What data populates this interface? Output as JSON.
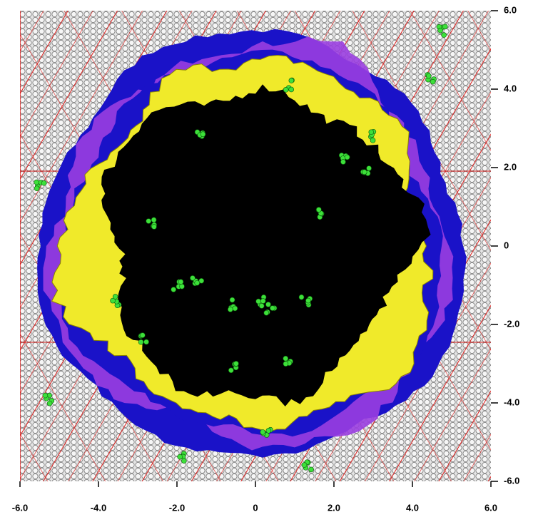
{
  "chart_data": {
    "type": "image",
    "xlim": [
      -6,
      6
    ],
    "ylim": [
      -6,
      6
    ],
    "xticks": [
      {
        "value": -6,
        "label": "-6.0"
      },
      {
        "value": -4,
        "label": "-4.0"
      },
      {
        "value": -2,
        "label": "-2.0"
      },
      0,
      {
        "value": 2,
        "label": "2.0"
      },
      {
        "value": 4,
        "label": "4.0"
      },
      {
        "value": 6,
        "label": "6.0"
      }
    ],
    "yticks": [
      {
        "value": 6,
        "label": "6.0"
      },
      {
        "value": 4,
        "label": "4.0"
      },
      {
        "value": 2,
        "label": "2.0"
      },
      0,
      {
        "value": -2,
        "label": "-2.0"
      },
      {
        "value": -4,
        "label": "-4.0"
      },
      {
        "value": -6,
        "label": "-6.0"
      }
    ]
  }
}
